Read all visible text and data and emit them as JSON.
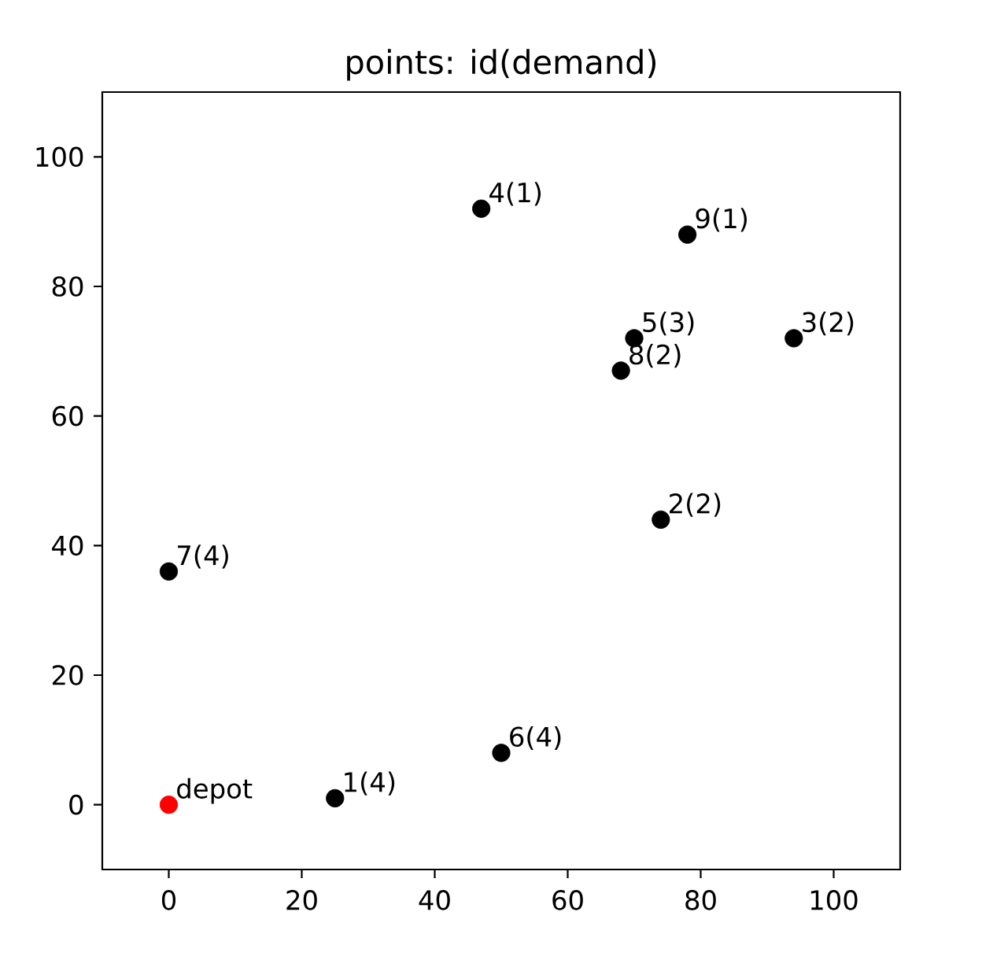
{
  "chart_data": {
    "type": "scatter",
    "title": "points: id(demand)",
    "xlim": [
      -10,
      110
    ],
    "ylim": [
      -10,
      110
    ],
    "xticks": [
      0,
      20,
      40,
      60,
      80,
      100
    ],
    "yticks": [
      0,
      20,
      40,
      60,
      80,
      100
    ],
    "marker": "circle",
    "series": [
      {
        "color": "#ff0000",
        "x": [
          0
        ],
        "values": [
          0
        ]
      },
      {
        "color": "#000000",
        "x": [
          25,
          74,
          94,
          47,
          70,
          50,
          0,
          68,
          78
        ],
        "values": [
          1,
          44,
          72,
          92,
          72,
          8,
          36,
          67,
          88
        ]
      }
    ],
    "annotations": [
      {
        "text": "depot",
        "x": 0,
        "y": 0
      },
      {
        "text": "1(4)",
        "x": 25,
        "y": 1
      },
      {
        "text": "2(2)",
        "x": 74,
        "y": 44
      },
      {
        "text": "3(2)",
        "x": 94,
        "y": 72
      },
      {
        "text": "4(1)",
        "x": 47,
        "y": 92
      },
      {
        "text": "5(3)",
        "x": 70,
        "y": 72
      },
      {
        "text": "6(4)",
        "x": 50,
        "y": 8
      },
      {
        "text": "7(4)",
        "x": 0,
        "y": 36
      },
      {
        "text": "8(2)",
        "x": 68,
        "y": 67
      },
      {
        "text": "9(1)",
        "x": 78,
        "y": 88
      }
    ]
  }
}
